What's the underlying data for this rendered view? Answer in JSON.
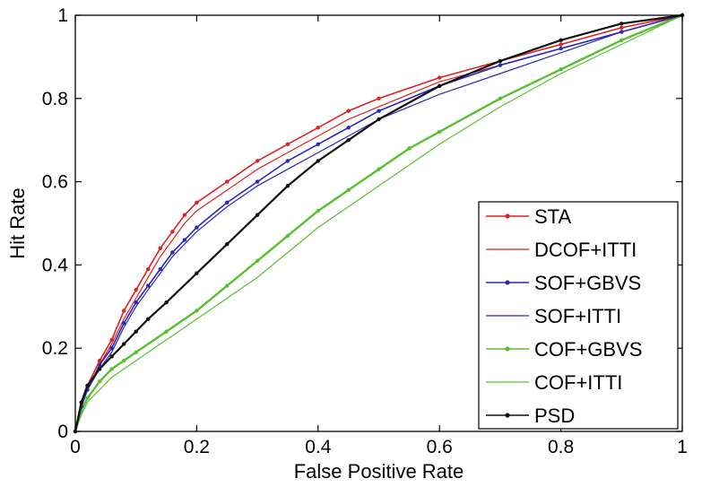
{
  "chart_data": {
    "type": "line",
    "title": "",
    "xlabel": "False Positive Rate",
    "ylabel": "Hit Rate",
    "xlim": [
      0,
      1
    ],
    "ylim": [
      0,
      1
    ],
    "xticks": [
      0,
      0.2,
      0.4,
      0.6,
      0.8,
      1
    ],
    "yticks": [
      0,
      0.2,
      0.4,
      0.6,
      0.8,
      1
    ],
    "xtick_labels": [
      "0",
      "0.2",
      "0.4",
      "0.6",
      "0.8",
      "1"
    ],
    "ytick_labels": [
      "0",
      "0.2",
      "0.4",
      "0.6",
      "0.8",
      "1"
    ],
    "grid": false,
    "legend_position": "bottom-right",
    "series": [
      {
        "name": "STA",
        "color": "#e02020",
        "marker": "dot",
        "width": 1.6,
        "x": [
          0,
          0.01,
          0.02,
          0.04,
          0.06,
          0.08,
          0.1,
          0.12,
          0.14,
          0.16,
          0.18,
          0.2,
          0.25,
          0.3,
          0.35,
          0.4,
          0.45,
          0.5,
          0.6,
          0.7,
          0.8,
          0.9,
          1
        ],
        "y": [
          0,
          0.07,
          0.11,
          0.17,
          0.22,
          0.29,
          0.34,
          0.39,
          0.44,
          0.48,
          0.52,
          0.55,
          0.6,
          0.65,
          0.69,
          0.73,
          0.77,
          0.8,
          0.85,
          0.89,
          0.93,
          0.97,
          1
        ]
      },
      {
        "name": "DCOF+ITTI",
        "color": "#e02020",
        "marker": "none",
        "width": 1.2,
        "x": [
          0,
          0.01,
          0.02,
          0.04,
          0.06,
          0.08,
          0.1,
          0.12,
          0.14,
          0.16,
          0.18,
          0.2,
          0.25,
          0.3,
          0.35,
          0.4,
          0.45,
          0.5,
          0.6,
          0.7,
          0.8,
          0.9,
          1
        ],
        "y": [
          0,
          0.06,
          0.1,
          0.16,
          0.21,
          0.27,
          0.32,
          0.37,
          0.42,
          0.46,
          0.5,
          0.53,
          0.58,
          0.63,
          0.67,
          0.71,
          0.75,
          0.78,
          0.84,
          0.88,
          0.92,
          0.96,
          1
        ]
      },
      {
        "name": "SOF+GBVS",
        "color": "#2828b8",
        "marker": "dot",
        "width": 1.6,
        "x": [
          0,
          0.01,
          0.02,
          0.04,
          0.06,
          0.08,
          0.1,
          0.12,
          0.14,
          0.16,
          0.18,
          0.2,
          0.25,
          0.3,
          0.35,
          0.4,
          0.45,
          0.5,
          0.6,
          0.7,
          0.8,
          0.9,
          1
        ],
        "y": [
          0,
          0.06,
          0.1,
          0.16,
          0.2,
          0.26,
          0.31,
          0.35,
          0.39,
          0.43,
          0.46,
          0.49,
          0.55,
          0.6,
          0.65,
          0.69,
          0.73,
          0.77,
          0.83,
          0.88,
          0.92,
          0.96,
          1
        ]
      },
      {
        "name": "SOF+ITTI",
        "color": "#2828b8",
        "marker": "none",
        "width": 1.2,
        "x": [
          0,
          0.01,
          0.02,
          0.04,
          0.06,
          0.08,
          0.1,
          0.12,
          0.14,
          0.16,
          0.18,
          0.2,
          0.25,
          0.3,
          0.35,
          0.4,
          0.45,
          0.5,
          0.6,
          0.7,
          0.8,
          0.9,
          1
        ],
        "y": [
          0,
          0.06,
          0.1,
          0.15,
          0.19,
          0.25,
          0.3,
          0.34,
          0.38,
          0.42,
          0.45,
          0.48,
          0.54,
          0.59,
          0.63,
          0.67,
          0.71,
          0.75,
          0.81,
          0.86,
          0.91,
          0.96,
          1
        ]
      },
      {
        "name": "COF+GBVS",
        "color": "#58c030",
        "marker": "dot",
        "width": 2.4,
        "x": [
          0,
          0.01,
          0.02,
          0.04,
          0.06,
          0.08,
          0.1,
          0.15,
          0.2,
          0.25,
          0.3,
          0.35,
          0.4,
          0.45,
          0.5,
          0.55,
          0.6,
          0.7,
          0.8,
          0.9,
          1
        ],
        "y": [
          0,
          0.05,
          0.08,
          0.12,
          0.15,
          0.17,
          0.19,
          0.24,
          0.29,
          0.35,
          0.41,
          0.47,
          0.53,
          0.58,
          0.63,
          0.68,
          0.72,
          0.8,
          0.87,
          0.94,
          1
        ]
      },
      {
        "name": "COF+ITTI",
        "color": "#58c030",
        "marker": "none",
        "width": 1.2,
        "x": [
          0,
          0.01,
          0.02,
          0.04,
          0.06,
          0.08,
          0.1,
          0.15,
          0.2,
          0.25,
          0.3,
          0.35,
          0.4,
          0.45,
          0.5,
          0.55,
          0.6,
          0.7,
          0.8,
          0.9,
          1
        ],
        "y": [
          0,
          0.04,
          0.07,
          0.1,
          0.13,
          0.15,
          0.17,
          0.22,
          0.27,
          0.32,
          0.37,
          0.43,
          0.49,
          0.54,
          0.59,
          0.64,
          0.69,
          0.78,
          0.86,
          0.93,
          1
        ]
      },
      {
        "name": "PSD",
        "color": "#111111",
        "marker": "dot",
        "width": 2.2,
        "x": [
          0,
          0.01,
          0.02,
          0.04,
          0.06,
          0.08,
          0.1,
          0.12,
          0.15,
          0.2,
          0.25,
          0.3,
          0.35,
          0.4,
          0.45,
          0.5,
          0.6,
          0.7,
          0.8,
          0.9,
          1
        ],
        "y": [
          0,
          0.07,
          0.11,
          0.15,
          0.18,
          0.21,
          0.24,
          0.27,
          0.31,
          0.38,
          0.45,
          0.52,
          0.59,
          0.65,
          0.7,
          0.75,
          0.83,
          0.89,
          0.94,
          0.98,
          1
        ]
      }
    ]
  }
}
